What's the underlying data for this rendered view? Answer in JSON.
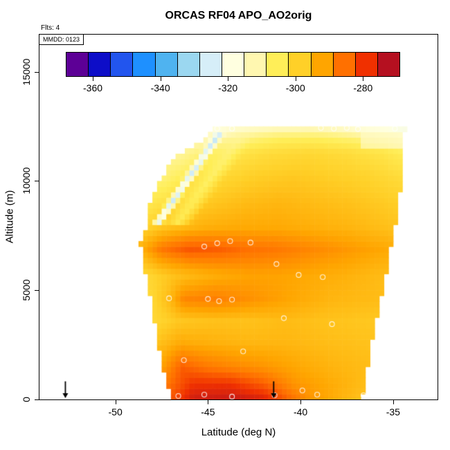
{
  "title": "ORCAS RF04 APO_AO2orig",
  "annotations": {
    "flights_label": "Flts: 4",
    "mmdd_label": "MMDD: 0123"
  },
  "chart_data": {
    "type": "heatmap",
    "title": "ORCAS RF04 APO_AO2orig",
    "xlabel": "Latitude (deg N)",
    "ylabel": "Altitude (m)",
    "x_axis": {
      "min": -54.1,
      "max": -32.6,
      "ticks": [
        -50,
        -45,
        -40,
        -35
      ],
      "data_min": -48.75,
      "data_max": -34.25
    },
    "y_axis": {
      "min": 0,
      "max": 16700,
      "ticks": [
        0,
        5000,
        10000,
        15000
      ],
      "data_max": 12500
    },
    "colorbar": {
      "domain": [
        -368,
        -269
      ],
      "ticks": [
        -360,
        -340,
        -320,
        -300,
        -280
      ],
      "colors": [
        "#5D0096",
        "#0D0DC8",
        "#2255EE",
        "#1E90FF",
        "#4FB3F0",
        "#9BD7F0",
        "#D6EEF8",
        "#FFFFE0",
        "#FFF7B0",
        "#FFEE58",
        "#FFD028",
        "#FFA500",
        "#FF7000",
        "#F03000",
        "#B51020"
      ]
    },
    "envelope": [
      {
        "alt": 0,
        "lat_min": -46.95,
        "lat_max": -36.7
      },
      {
        "alt": 1000,
        "lat_min": -47.3,
        "lat_max": -36.5
      },
      {
        "alt": 2500,
        "lat_min": -47.7,
        "lat_max": -36.2
      },
      {
        "alt": 4000,
        "lat_min": -47.95,
        "lat_max": -35.8
      },
      {
        "alt": 5500,
        "lat_min": -48.3,
        "lat_max": -35.45
      },
      {
        "alt": 7200,
        "lat_min": -48.65,
        "lat_max": -35.05
      },
      {
        "alt": 8000,
        "lat_min": -48.3,
        "lat_max": -34.9
      },
      {
        "alt": 8800,
        "lat_min": -48.25,
        "lat_max": -34.7
      },
      {
        "alt": 9600,
        "lat_min": -47.8,
        "lat_max": -34.6
      },
      {
        "alt": 10400,
        "lat_min": -47.35,
        "lat_max": -34.55
      },
      {
        "alt": 11300,
        "lat_min": -46.5,
        "lat_max": -34.5
      },
      {
        "alt": 11900,
        "lat_min": -45.2,
        "lat_max": -34.45
      },
      {
        "alt": 12500,
        "lat_min": -44.5,
        "lat_max": -34.3
      }
    ],
    "bands": [
      {
        "alt": 0,
        "stops": [
          [
            -47.0,
            -280
          ],
          [
            -45.8,
            -272
          ],
          [
            -43.5,
            -271
          ],
          [
            -42.0,
            -273
          ],
          [
            -40.8,
            -281
          ],
          [
            -39.5,
            -288
          ],
          [
            -38.0,
            -292
          ],
          [
            -36.7,
            -295
          ]
        ]
      },
      {
        "alt": 700,
        "stops": [
          [
            -47.2,
            -284
          ],
          [
            -45.8,
            -276
          ],
          [
            -43.8,
            -276
          ],
          [
            -42.0,
            -281
          ],
          [
            -40.3,
            -288
          ],
          [
            -38.5,
            -291
          ],
          [
            -36.6,
            -294
          ]
        ]
      },
      {
        "alt": 1500,
        "stops": [
          [
            -47.4,
            -289
          ],
          [
            -46.4,
            -281
          ],
          [
            -45.2,
            -284
          ],
          [
            -43.8,
            -286
          ],
          [
            -42.0,
            -288
          ],
          [
            -40.0,
            -291
          ],
          [
            -38.0,
            -293
          ],
          [
            -36.4,
            -294
          ]
        ]
      },
      {
        "alt": 2600,
        "stops": [
          [
            -47.7,
            -295
          ],
          [
            -46.5,
            -291
          ],
          [
            -44.8,
            -292
          ],
          [
            -42.8,
            -293
          ],
          [
            -40.8,
            -293
          ],
          [
            -38.8,
            -294
          ],
          [
            -36.2,
            -295
          ]
        ]
      },
      {
        "alt": 3600,
        "stops": [
          [
            -47.9,
            -299
          ],
          [
            -46.6,
            -296
          ],
          [
            -44.8,
            -295
          ],
          [
            -42.8,
            -295
          ],
          [
            -40.8,
            -294
          ],
          [
            -38.8,
            -295
          ],
          [
            -35.8,
            -296
          ]
        ]
      },
      {
        "alt": 4600,
        "stops": [
          [
            -48.0,
            -299
          ],
          [
            -47.0,
            -293
          ],
          [
            -46.3,
            -286
          ],
          [
            -44.6,
            -285
          ],
          [
            -43.1,
            -287
          ],
          [
            -41.6,
            -289
          ],
          [
            -40.1,
            -291
          ],
          [
            -38.3,
            -293
          ],
          [
            -35.7,
            -294
          ]
        ]
      },
      {
        "alt": 5700,
        "stops": [
          [
            -48.3,
            -299
          ],
          [
            -46.8,
            -295
          ],
          [
            -44.8,
            -292
          ],
          [
            -42.8,
            -290
          ],
          [
            -41.2,
            -290
          ],
          [
            -39.6,
            -291
          ],
          [
            -37.8,
            -292
          ],
          [
            -35.5,
            -294
          ]
        ]
      },
      {
        "alt": 6900,
        "stops": [
          [
            -48.6,
            -292
          ],
          [
            -47.5,
            -284
          ],
          [
            -46.0,
            -280
          ],
          [
            -44.4,
            -281
          ],
          [
            -43.0,
            -283
          ],
          [
            -41.4,
            -284
          ],
          [
            -39.6,
            -286
          ],
          [
            -37.8,
            -288
          ],
          [
            -35.2,
            -291
          ]
        ]
      },
      {
        "alt": 7900,
        "stops": [
          [
            -48.4,
            -298
          ],
          [
            -47.2,
            -295
          ],
          [
            -45.2,
            -292
          ],
          [
            -43.2,
            -291
          ],
          [
            -41.2,
            -291
          ],
          [
            -39.2,
            -292
          ],
          [
            -37.2,
            -293
          ],
          [
            -34.9,
            -295
          ]
        ]
      },
      {
        "alt": 9000,
        "stops": [
          [
            -48.2,
            -303
          ],
          [
            -46.5,
            -299
          ],
          [
            -45.0,
            -296
          ],
          [
            -43.2,
            -294
          ],
          [
            -41.2,
            -293
          ],
          [
            -39.2,
            -294
          ],
          [
            -37.2,
            -295
          ],
          [
            -34.7,
            -297
          ]
        ]
      },
      {
        "alt": 10200,
        "stops": [
          [
            -47.4,
            -307
          ],
          [
            -46.0,
            -303
          ],
          [
            -44.4,
            -299
          ],
          [
            -42.4,
            -297
          ],
          [
            -40.4,
            -296
          ],
          [
            -38.4,
            -297
          ],
          [
            -36.4,
            -298
          ],
          [
            -34.6,
            -300
          ]
        ]
      },
      {
        "alt": 11300,
        "stops": [
          [
            -46.5,
            -310
          ],
          [
            -45.0,
            -306
          ],
          [
            -43.4,
            -302
          ],
          [
            -41.6,
            -300
          ],
          [
            -39.6,
            -299
          ],
          [
            -37.6,
            -300
          ],
          [
            -35.6,
            -302
          ],
          [
            -34.5,
            -304
          ]
        ]
      },
      {
        "alt": 12000,
        "stops": [
          [
            -45.2,
            -313
          ],
          [
            -44.0,
            -310
          ],
          [
            -42.5,
            -307
          ],
          [
            -41.0,
            -305
          ],
          [
            -39.0,
            -305
          ],
          [
            -37.0,
            -307
          ],
          [
            -35.0,
            -311
          ],
          [
            -34.4,
            -313
          ]
        ]
      },
      {
        "alt": 12450,
        "stops": [
          [
            -44.5,
            -319
          ],
          [
            -43.2,
            -316
          ],
          [
            -41.5,
            -314
          ],
          [
            -39.5,
            -313
          ],
          [
            -38.0,
            -315
          ],
          [
            -36.5,
            -319
          ],
          [
            -34.3,
            -321
          ]
        ]
      }
    ],
    "streaks": [
      {
        "from": [
          -47.7,
          8100
        ],
        "to": [
          -44.3,
          12300
        ],
        "half_width_deg": 0.35,
        "value": -330,
        "strength": 0.9
      },
      {
        "from": [
          -46.8,
          7900
        ],
        "to": [
          -43.0,
          12300
        ],
        "half_width_deg": 0.8,
        "value": -310,
        "strength": 0.55
      }
    ],
    "patches": [
      {
        "lat_range": [
          -36.8,
          -34.3
        ],
        "alt_range": [
          11600,
          12300
        ],
        "value": -315,
        "strength": 0.55
      }
    ],
    "track_points": [
      [
        -44.5,
        12400
      ],
      [
        -43.7,
        12400
      ],
      [
        -38.9,
        12430
      ],
      [
        -38.2,
        12400
      ],
      [
        -37.5,
        12430
      ],
      [
        -36.9,
        12380
      ],
      [
        -34.9,
        12400
      ],
      [
        -45.2,
        7000
      ],
      [
        -44.5,
        7150
      ],
      [
        -43.8,
        7250
      ],
      [
        -42.7,
        7180
      ],
      [
        -41.3,
        6200
      ],
      [
        -40.1,
        5700
      ],
      [
        -38.8,
        5600
      ],
      [
        -47.1,
        4630
      ],
      [
        -45.0,
        4600
      ],
      [
        -44.4,
        4500
      ],
      [
        -43.7,
        4570
      ],
      [
        -40.9,
        3720
      ],
      [
        -38.3,
        3450
      ],
      [
        -43.1,
        2200
      ],
      [
        -46.3,
        1800
      ],
      [
        -46.6,
        160
      ],
      [
        -45.2,
        220
      ],
      [
        -43.7,
        130
      ],
      [
        -41.4,
        190
      ],
      [
        -39.9,
        410
      ],
      [
        -39.1,
        220
      ],
      [
        -36.6,
        190
      ]
    ],
    "arrows": [
      {
        "lat": -52.7,
        "alt_from": 830,
        "alt_to": 60
      },
      {
        "lat": -41.45,
        "alt_from": 830,
        "alt_to": 60
      }
    ],
    "grid_step": {
      "lat": 0.25,
      "alt": 250
    }
  }
}
